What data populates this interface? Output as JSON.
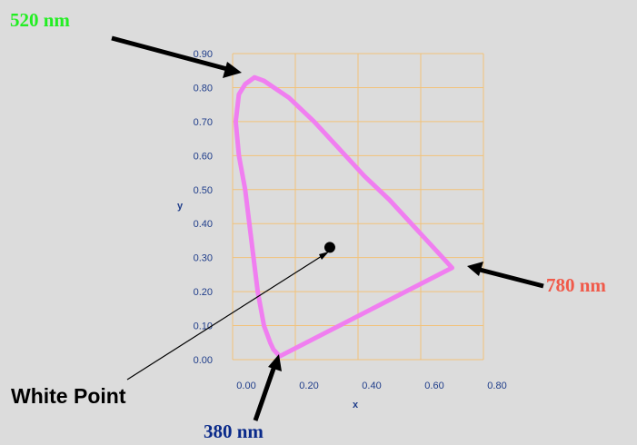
{
  "colors": {
    "background": "#dcdcdc",
    "grid": "#f2c27a",
    "locus": "#f07ef0",
    "ticks": "#1f3d8a",
    "green_label": "#22ee22",
    "red_label": "#f05a4a",
    "blue_label": "#0a2a8a",
    "arrow": "#000000"
  },
  "chart_data": {
    "type": "line",
    "xlabel": "x",
    "ylabel": "y",
    "xlim": [
      0.0,
      0.8
    ],
    "ylim": [
      0.0,
      0.9
    ],
    "x_ticks": [
      0.0,
      0.2,
      0.4,
      0.6,
      0.8
    ],
    "y_ticks": [
      0.0,
      0.1,
      0.2,
      0.3,
      0.4,
      0.5,
      0.6,
      0.7,
      0.8,
      0.9
    ],
    "x_tick_labels": [
      "0.00",
      "0.20",
      "0.40",
      "0.60",
      "0.80"
    ],
    "y_tick_labels": [
      "0.00",
      "0.10",
      "0.20",
      "0.30",
      "0.40",
      "0.50",
      "0.60",
      "0.70",
      "0.80",
      "0.90"
    ],
    "grid": true,
    "series": [
      {
        "values": [
          [
            0.15,
            0.01
          ],
          [
            0.13,
            0.03
          ],
          [
            0.12,
            0.05
          ],
          [
            0.1,
            0.1
          ],
          [
            0.08,
            0.2
          ],
          [
            0.06,
            0.35
          ],
          [
            0.04,
            0.5
          ],
          [
            0.02,
            0.6
          ],
          [
            0.01,
            0.7
          ],
          [
            0.02,
            0.78
          ],
          [
            0.04,
            0.81
          ],
          [
            0.07,
            0.83
          ],
          [
            0.1,
            0.82
          ],
          [
            0.18,
            0.77
          ],
          [
            0.26,
            0.7
          ],
          [
            0.34,
            0.62
          ],
          [
            0.42,
            0.54
          ],
          [
            0.5,
            0.47
          ],
          [
            0.58,
            0.39
          ],
          [
            0.65,
            0.32
          ],
          [
            0.7,
            0.27
          ],
          [
            0.15,
            0.01
          ]
        ]
      }
    ],
    "white_point": [
      0.31,
      0.33
    ],
    "annotations": [
      {
        "text": "520 nm",
        "target": [
          0.03,
          0.82
        ],
        "color": "green_label"
      },
      {
        "text": "780 nm",
        "target": [
          0.72,
          0.27
        ],
        "color": "red_label"
      },
      {
        "text": "380 nm",
        "target": [
          0.15,
          0.01
        ],
        "color": "blue_label"
      },
      {
        "text": "White Point",
        "target": [
          0.3,
          0.31
        ],
        "color": "arrow"
      }
    ]
  }
}
